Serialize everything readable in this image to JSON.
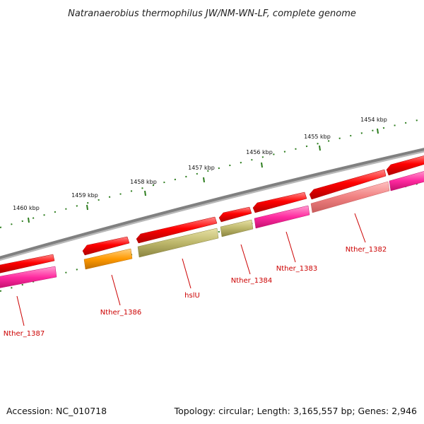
{
  "title": "Natranaerobius thermophilus JW/NM-WN-LF, complete genome",
  "footer": {
    "accession": "Accession: NC_010718",
    "topology": "Topology: circular; Length: 3,165,557 bp; Genes: 2,946"
  },
  "kbp_labels": [
    "1454 kbp",
    "1455 kbp",
    "1456 kbp",
    "1457 kbp",
    "1458 kbp",
    "1459 kbp",
    "1460 kbp"
  ],
  "gene_labels": [
    "Nther_1382",
    "Nther_1383",
    "Nther_1384",
    "hslU",
    "Nther_1386",
    "Nther_1387"
  ],
  "colors": {
    "backbone": "#808080",
    "cds_red": "#ff0000",
    "magenta": "#ff2aa0",
    "salmon": "#f08080",
    "olive": "#bdb76b",
    "orange": "#ff9900",
    "tick_green": "#2d7d1e",
    "label_red": "#cc0000"
  }
}
